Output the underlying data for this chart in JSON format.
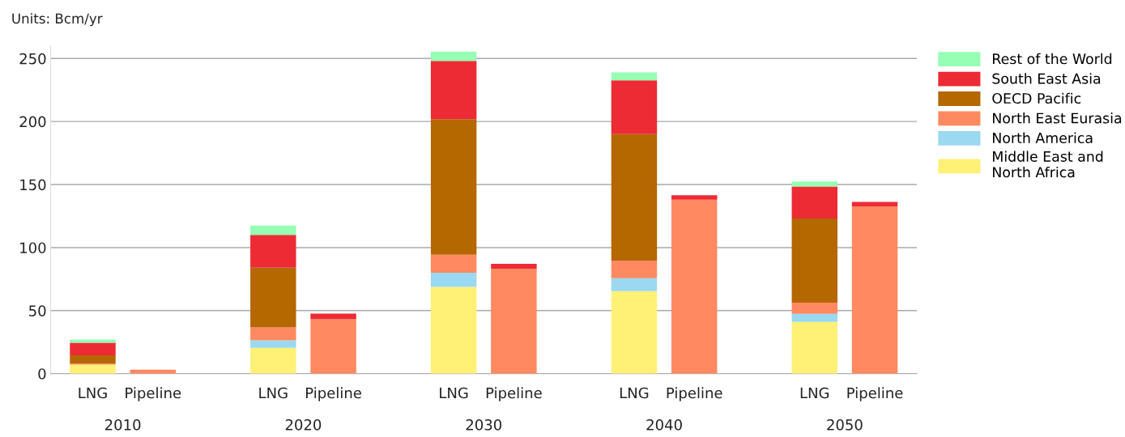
{
  "chart_data": {
    "type": "bar",
    "stacked": true,
    "ylabel": "Units: Bcm/yr",
    "categories": [
      "LNG",
      "Pipeline",
      null,
      "LNG",
      "Pipeline",
      null,
      "LNG",
      "Pipeline",
      null,
      "LNG",
      "Pipeline",
      null,
      "LNG",
      "Pipeline"
    ],
    "series": [
      {
        "name": "Middle East and North Africa",
        "color": "#fff076",
        "values": [
          7.2,
          null,
          null,
          20.5,
          null,
          null,
          68.8,
          null,
          null,
          65.4,
          null,
          null,
          41,
          null
        ]
      },
      {
        "name": "North America",
        "color": "#9ad9ef",
        "values": [
          null,
          null,
          null,
          6,
          null,
          null,
          11.2,
          null,
          null,
          10.4,
          null,
          null,
          6.5,
          null
        ]
      },
      {
        "name": "North East Eurasia",
        "color": "#ff8961",
        "values": [
          1,
          3.2,
          null,
          10.3,
          43.2,
          null,
          14.3,
          83.3,
          null,
          13.9,
          138,
          null,
          8.8,
          132.7
        ]
      },
      {
        "name": "OECD Pacific",
        "color": "#b56700",
        "values": [
          6.4,
          null,
          null,
          47.3,
          null,
          null,
          107.6,
          null,
          null,
          100.3,
          null,
          null,
          66.7,
          null
        ]
      },
      {
        "name": "South East Asia",
        "color": "#ec2b35",
        "values": [
          10,
          null,
          null,
          26,
          4.5,
          null,
          46.2,
          3.8,
          null,
          42.7,
          3.6,
          null,
          25.5,
          3.6
        ]
      },
      {
        "name": "Rest of the World",
        "color": "#96ffb4",
        "values": [
          2.5,
          null,
          null,
          7.3,
          null,
          null,
          7.4,
          null,
          null,
          6.3,
          null,
          null,
          4,
          null
        ]
      }
    ],
    "annotations": [
      "2010",
      "2020",
      "2030",
      "2040",
      "2050"
    ],
    "ylim": [
      0,
      260
    ],
    "yticks": [
      0,
      50,
      100,
      150,
      200,
      250
    ],
    "grid": "y",
    "legend": "right"
  }
}
